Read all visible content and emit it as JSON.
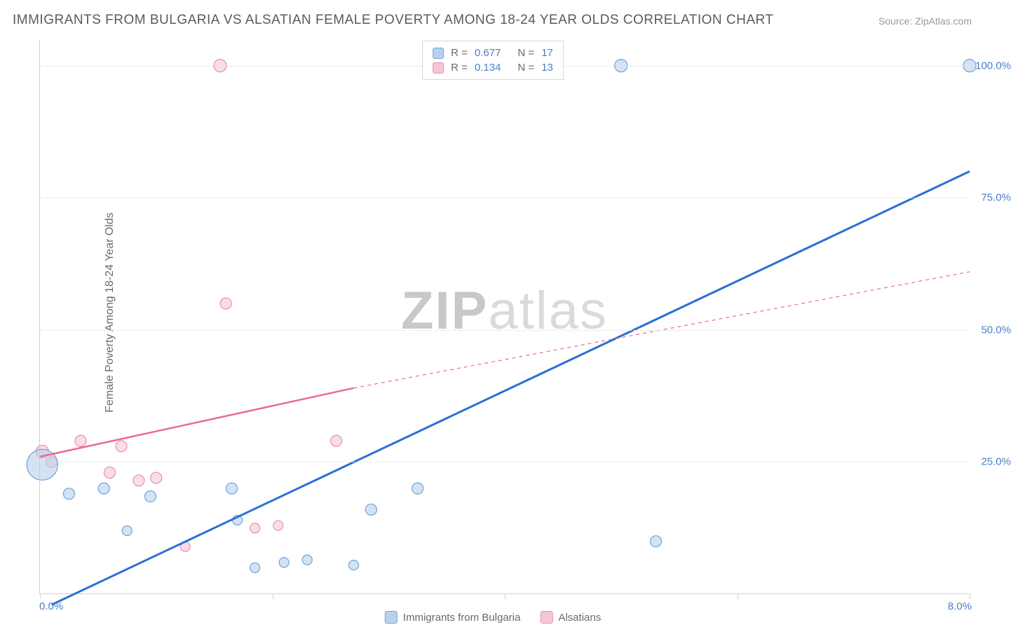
{
  "title": "IMMIGRANTS FROM BULGARIA VS ALSATIAN FEMALE POVERTY AMONG 18-24 YEAR OLDS CORRELATION CHART",
  "source": "Source: ZipAtlas.com",
  "y_axis_label": "Female Poverty Among 18-24 Year Olds",
  "watermark_a": "ZIP",
  "watermark_b": "atlas",
  "chart": {
    "type": "scatter",
    "xlim": [
      0,
      8
    ],
    "ylim": [
      0,
      105
    ],
    "x_ticks": [
      0,
      2,
      4,
      6,
      8
    ],
    "x_tick_labels": {
      "0": "0.0%",
      "8": "8.0%"
    },
    "y_ticks": [
      25,
      50,
      75,
      100
    ],
    "y_tick_labels": {
      "25": "25.0%",
      "50": "50.0%",
      "75": "75.0%",
      "100": "100.0%"
    },
    "background_color": "#ffffff",
    "grid_color": "#e0e0e0",
    "axis_color": "#d0d0d0",
    "tick_label_color": "#4a7ec8",
    "series": [
      {
        "name": "Immigrants from Bulgaria",
        "color_fill": "#b8d0ec",
        "color_stroke": "#6fa3dd",
        "line_color": "#2b6fd6",
        "line_width": 3,
        "line_dash": "none",
        "R": "0.677",
        "N": "17",
        "trend": {
          "x1": 0.1,
          "y1": -2,
          "x2": 8.0,
          "y2": 80
        },
        "points": [
          {
            "x": 0.02,
            "y": 24.5,
            "r": 22
          },
          {
            "x": 0.25,
            "y": 19,
            "r": 8
          },
          {
            "x": 0.55,
            "y": 20,
            "r": 8
          },
          {
            "x": 0.95,
            "y": 18.5,
            "r": 8
          },
          {
            "x": 0.75,
            "y": 12,
            "r": 7
          },
          {
            "x": 1.65,
            "y": 20,
            "r": 8
          },
          {
            "x": 1.7,
            "y": 14,
            "r": 7
          },
          {
            "x": 1.85,
            "y": 5,
            "r": 7
          },
          {
            "x": 2.1,
            "y": 6,
            "r": 7
          },
          {
            "x": 2.3,
            "y": 6.5,
            "r": 7
          },
          {
            "x": 2.7,
            "y": 5.5,
            "r": 7
          },
          {
            "x": 2.85,
            "y": 16,
            "r": 8
          },
          {
            "x": 3.25,
            "y": 20,
            "r": 8
          },
          {
            "x": 5.0,
            "y": 100,
            "r": 9
          },
          {
            "x": 5.3,
            "y": 10,
            "r": 8
          },
          {
            "x": 8.0,
            "y": 100,
            "r": 9
          }
        ]
      },
      {
        "name": "Alsatians",
        "color_fill": "#f5c6d6",
        "color_stroke": "#e88fb0",
        "line_color": "#e86a9a",
        "line_width": 2.5,
        "line_dash": "none",
        "line_dash_ext": "5,5",
        "R": "0.134",
        "N": "13",
        "trend_solid": {
          "x1": 0,
          "y1": 26,
          "x2": 2.7,
          "y2": 39
        },
        "trend_dash": {
          "x1": 2.7,
          "y1": 39,
          "x2": 8.0,
          "y2": 61
        },
        "points": [
          {
            "x": 0.02,
            "y": 27,
            "r": 9
          },
          {
            "x": 0.1,
            "y": 25,
            "r": 8
          },
          {
            "x": 0.35,
            "y": 29,
            "r": 8
          },
          {
            "x": 0.6,
            "y": 23,
            "r": 8
          },
          {
            "x": 0.7,
            "y": 28,
            "r": 8
          },
          {
            "x": 0.85,
            "y": 21.5,
            "r": 8
          },
          {
            "x": 1.0,
            "y": 22,
            "r": 8
          },
          {
            "x": 1.25,
            "y": 9,
            "r": 7
          },
          {
            "x": 1.55,
            "y": 100,
            "r": 9
          },
          {
            "x": 1.6,
            "y": 55,
            "r": 8
          },
          {
            "x": 1.85,
            "y": 12.5,
            "r": 7
          },
          {
            "x": 2.05,
            "y": 13,
            "r": 7
          },
          {
            "x": 2.55,
            "y": 29,
            "r": 8
          }
        ]
      }
    ]
  },
  "bottom_legend": {
    "series1": "Immigrants from Bulgaria",
    "series2": "Alsatians"
  },
  "top_legend": {
    "r_label": "R =",
    "n_label": "N ="
  }
}
